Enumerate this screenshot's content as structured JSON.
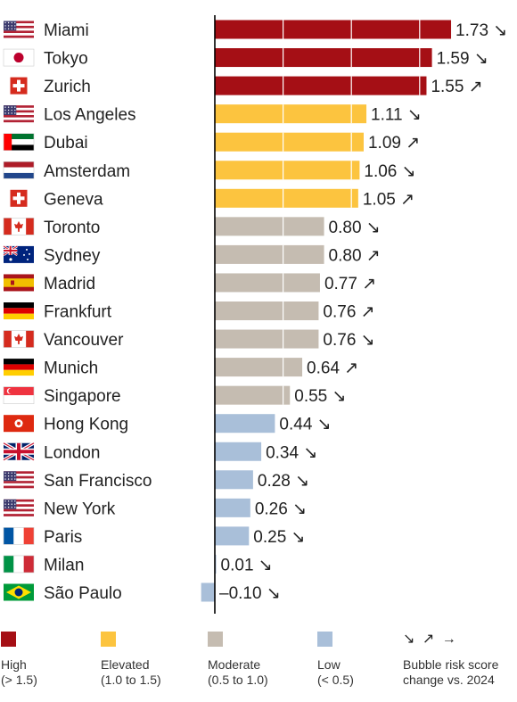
{
  "chart_data": {
    "type": "bar",
    "orientation": "horizontal",
    "xlim": [
      -0.1,
      1.73
    ],
    "categories": [
      "Miami",
      "Tokyo",
      "Zurich",
      "Los Angeles",
      "Dubai",
      "Amsterdam",
      "Geneva",
      "Toronto",
      "Sydney",
      "Madrid",
      "Frankfurt",
      "Vancouver",
      "Munich",
      "Singapore",
      "Hong Kong",
      "London",
      "San Francisco",
      "New York",
      "Paris",
      "Milan",
      "São Paulo"
    ],
    "values": [
      1.73,
      1.59,
      1.55,
      1.11,
      1.09,
      1.06,
      1.05,
      0.8,
      0.8,
      0.77,
      0.76,
      0.76,
      0.64,
      0.55,
      0.44,
      0.34,
      0.28,
      0.26,
      0.25,
      0.01,
      -0.1
    ],
    "labels": [
      "1.73",
      "1.59",
      "1.55",
      "1.11",
      "1.09",
      "1.06",
      "1.05",
      "0.80",
      "0.80",
      "0.77",
      "0.76",
      "0.76",
      "0.64",
      "0.55",
      "0.44",
      "0.34",
      "0.28",
      "0.26",
      "0.25",
      "0.01",
      "–0.10"
    ],
    "trend": [
      "down",
      "down",
      "up",
      "down",
      "up",
      "down",
      "up",
      "down",
      "up",
      "up",
      "up",
      "down",
      "up",
      "down",
      "down",
      "down",
      "down",
      "down",
      "down",
      "down",
      "down"
    ],
    "category_level": [
      "high",
      "high",
      "high",
      "elevated",
      "elevated",
      "elevated",
      "elevated",
      "moderate",
      "moderate",
      "moderate",
      "moderate",
      "moderate",
      "moderate",
      "moderate",
      "low",
      "low",
      "low",
      "low",
      "low",
      "low",
      "low"
    ],
    "flags": [
      "us-flag-icon",
      "japan-flag-icon",
      "switzerland-flag-icon",
      "us-flag-icon",
      "uae-flag-icon",
      "netherlands-flag-icon",
      "switzerland-flag-icon",
      "canada-flag-icon",
      "australia-flag-icon",
      "spain-flag-icon",
      "germany-flag-icon",
      "canada-flag-icon",
      "germany-flag-icon",
      "singapore-flag-icon",
      "hong-kong-flag-icon",
      "uk-flag-icon",
      "us-flag-icon",
      "us-flag-icon",
      "france-flag-icon",
      "italy-flag-icon",
      "brazil-flag-icon"
    ],
    "colors": {
      "high": "#a50f15",
      "elevated": "#fcc43f",
      "moderate": "#c5bcb1",
      "low": "#a9bfd9"
    },
    "grid": false
  },
  "legend": {
    "items": [
      {
        "key": "high",
        "label": "High",
        "range": "(> 1.5)"
      },
      {
        "key": "elevated",
        "label": "Elevated",
        "range": "(1.0 to 1.5)"
      },
      {
        "key": "moderate",
        "label": "Moderate",
        "range": "(0.5 to 1.0)"
      },
      {
        "key": "low",
        "label": "Low",
        "range": "(< 0.5)"
      }
    ],
    "trend_symbols": "↘ ↗ →",
    "trend_label_1": "Bubble risk score",
    "trend_label_2": "change vs. 2024"
  },
  "trend_glyphs": {
    "down": "↘",
    "up": "↗",
    "flat": "→"
  }
}
